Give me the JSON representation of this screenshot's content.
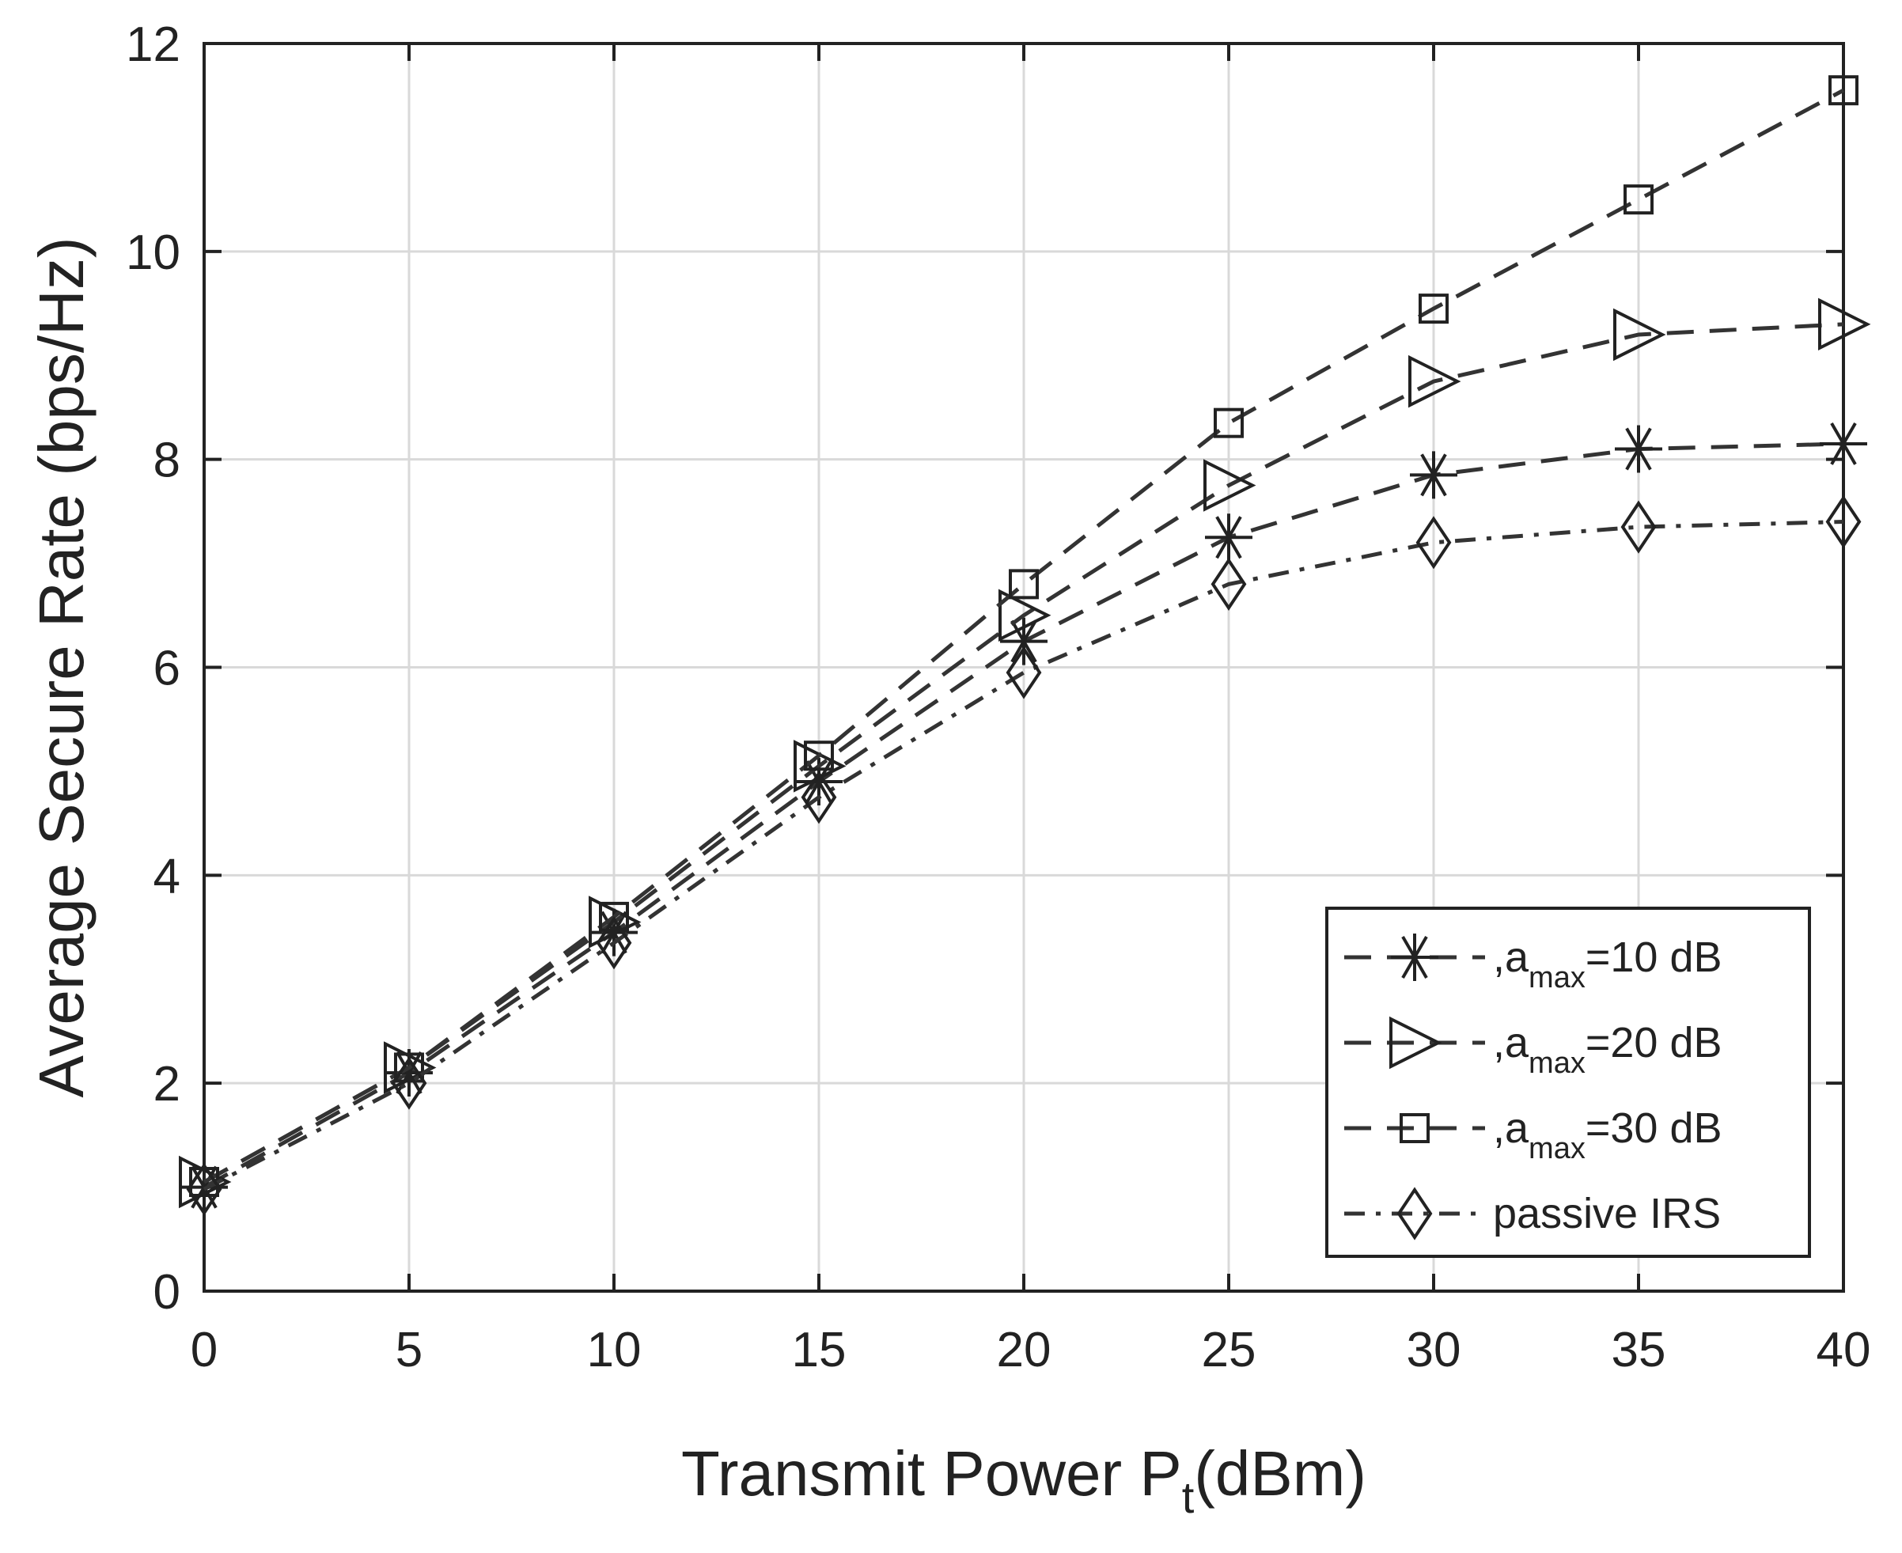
{
  "chart_data": {
    "type": "line",
    "xlabel_main": "Transmit Power P",
    "xlabel_sub": "t",
    "xlabel_tail": "(dBm)",
    "ylabel": "Average Secure Rate (bps/Hz)",
    "xlim": [
      0,
      40
    ],
    "ylim": [
      0,
      12
    ],
    "xticks": [
      0,
      5,
      10,
      15,
      20,
      25,
      30,
      35,
      40
    ],
    "yticks": [
      0,
      2,
      4,
      6,
      8,
      10,
      12
    ],
    "grid": true,
    "legend_position": "bottom-right",
    "x": [
      0,
      5,
      10,
      15,
      20,
      25,
      30,
      35,
      40
    ],
    "series": [
      {
        "name_prefix": ",a",
        "name_sub": "max",
        "name_suffix": "=10 dB",
        "marker": "asterisk",
        "line": "dashed",
        "values": [
          1.0,
          2.1,
          3.45,
          4.9,
          6.25,
          7.25,
          7.85,
          8.1,
          8.15
        ]
      },
      {
        "name_prefix": ",a",
        "name_sub": "max",
        "name_suffix": "=20 dB",
        "marker": "triangle-right",
        "line": "dashed",
        "values": [
          1.05,
          2.15,
          3.55,
          5.05,
          6.5,
          7.75,
          8.75,
          9.2,
          9.3
        ]
      },
      {
        "name_prefix": ",a",
        "name_sub": "max",
        "name_suffix": "=30 dB",
        "marker": "square",
        "line": "dashed",
        "values": [
          1.05,
          2.15,
          3.6,
          5.15,
          6.8,
          8.35,
          9.45,
          10.5,
          11.55
        ]
      },
      {
        "name_prefix": "passive IRS",
        "name_sub": "",
        "name_suffix": "",
        "marker": "diamond",
        "line": "dashdot",
        "values": [
          0.98,
          2.0,
          3.35,
          4.75,
          5.95,
          6.8,
          7.2,
          7.35,
          7.4
        ]
      }
    ]
  }
}
